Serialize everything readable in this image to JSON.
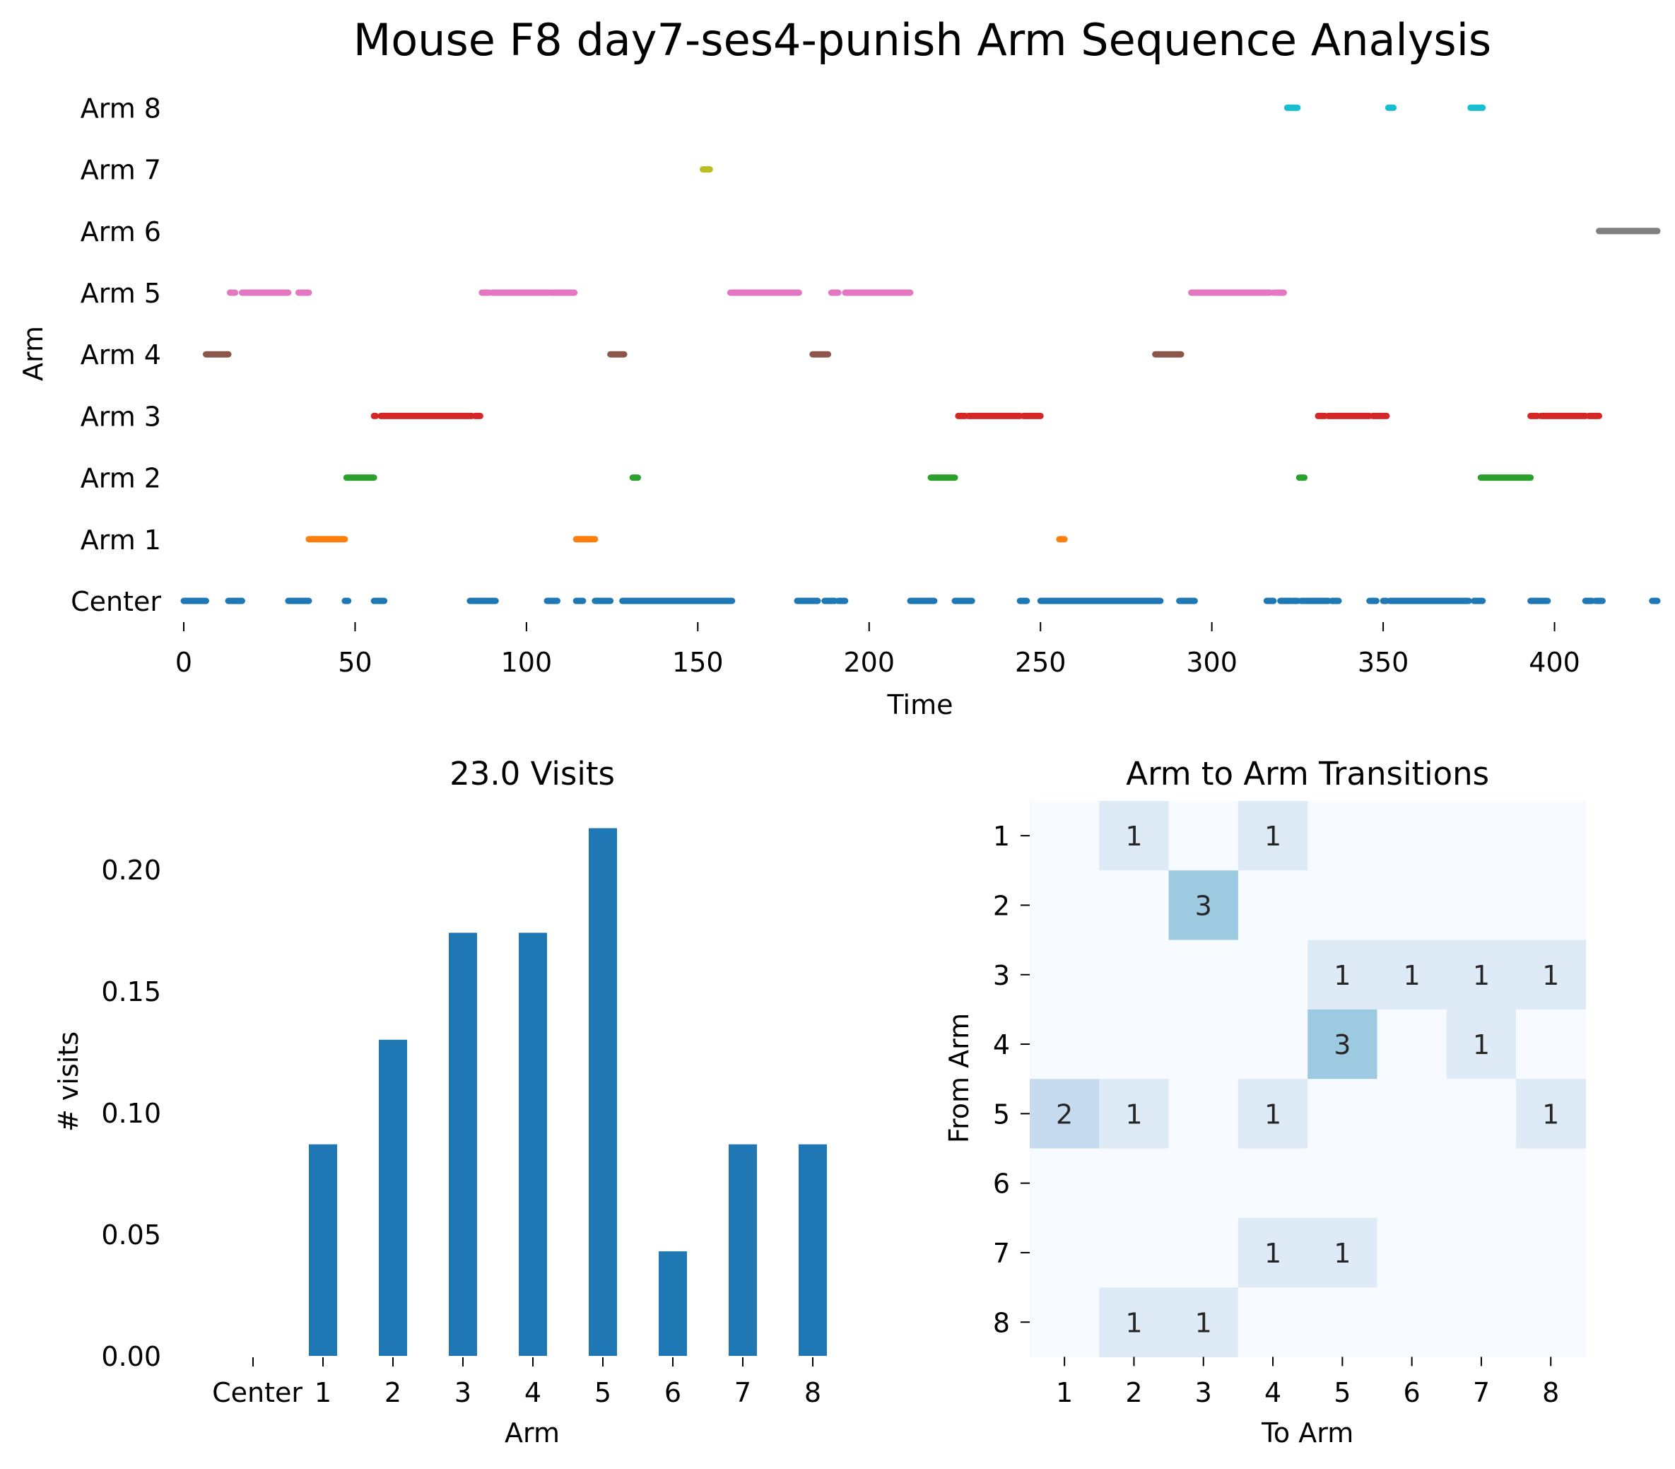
{
  "figure": {
    "suptitle": "Mouse F8 day7-ses4-punish Arm Sequence Analysis"
  },
  "chart_data": [
    {
      "type": "scatter",
      "title": "",
      "xlabel": "Time",
      "ylabel": "Arm",
      "xlim": [
        0,
        430
      ],
      "xticks": [
        0,
        50,
        100,
        150,
        200,
        250,
        300,
        350,
        400
      ],
      "categories": [
        "Center",
        "Arm 1",
        "Arm 2",
        "Arm 3",
        "Arm 4",
        "Arm 5",
        "Arm 6",
        "Arm 7",
        "Arm 8"
      ],
      "grid": false,
      "colors": {
        "Center": "#1f77b4",
        "Arm 1": "#ff7f0e",
        "Arm 2": "#2ca02c",
        "Arm 3": "#d62728",
        "Arm 4": "#8c564b",
        "Arm 5": "#e377c2",
        "Arm 6": "#7f7f7f",
        "Arm 7": "#bcbd22",
        "Arm 8": "#17becf"
      },
      "series": [
        {
          "name": "Center",
          "segments": [
            [
              0,
              6.5
            ],
            [
              13,
              17
            ],
            [
              30.5,
              36.5
            ],
            [
              47,
              48
            ],
            [
              55.5,
              58.5
            ],
            [
              83.5,
              91
            ],
            [
              106,
              109
            ],
            [
              114.5,
              116.5
            ],
            [
              120,
              124.5
            ],
            [
              128,
              160
            ],
            [
              179,
              185
            ],
            [
              187,
              190
            ],
            [
              191,
              193
            ],
            [
              212,
              219
            ],
            [
              225,
              230
            ],
            [
              244,
              246
            ],
            [
              250,
              285
            ],
            [
              290.5,
              295
            ],
            [
              316,
              318
            ],
            [
              320,
              323
            ],
            [
              323.5,
              325
            ],
            [
              326,
              327
            ],
            [
              327.5,
              334
            ],
            [
              335,
              337
            ],
            [
              346,
              348
            ],
            [
              350,
              351
            ],
            [
              352,
              375
            ],
            [
              376.5,
              379
            ],
            [
              393,
              398
            ],
            [
              409,
              411
            ],
            [
              412,
              414
            ],
            [
              428.5,
              430
            ]
          ]
        },
        {
          "name": "Arm 1",
          "segments": [
            [
              36.5,
              47
            ],
            [
              114.5,
              120
            ],
            [
              255.5,
              257
            ]
          ]
        },
        {
          "name": "Arm 2",
          "segments": [
            [
              47.5,
              55.5
            ],
            [
              131,
              132.5
            ],
            [
              218,
              225
            ],
            [
              325.5,
              327
            ],
            [
              378.5,
              393
            ]
          ]
        },
        {
          "name": "Arm 3",
          "segments": [
            [
              55.5,
              56
            ],
            [
              57.5,
              84
            ],
            [
              85,
              86.5
            ],
            [
              226,
              228
            ],
            [
              229,
              244
            ],
            [
              245,
              250
            ],
            [
              331,
              333
            ],
            [
              334,
              346
            ],
            [
              347,
              351
            ],
            [
              393,
              395
            ],
            [
              396,
              409
            ],
            [
              410,
              413
            ]
          ]
        },
        {
          "name": "Arm 4",
          "segments": [
            [
              6.5,
              13
            ],
            [
              124.5,
              128.5
            ],
            [
              183.5,
              188
            ],
            [
              283.5,
              291
            ]
          ]
        },
        {
          "name": "Arm 5",
          "segments": [
            [
              13.5,
              15
            ],
            [
              17,
              30.5
            ],
            [
              33.5,
              36.5
            ],
            [
              87,
              89
            ],
            [
              90,
              106.5
            ],
            [
              107,
              114
            ],
            [
              159.5,
              179.5
            ],
            [
              189,
              191
            ],
            [
              193,
              212
            ],
            [
              294,
              317
            ],
            [
              318,
              321
            ]
          ]
        },
        {
          "name": "Arm 6",
          "segments": [
            [
              413,
              430
            ]
          ]
        },
        {
          "name": "Arm 7",
          "segments": [
            [
              151.5,
              153.5
            ]
          ]
        },
        {
          "name": "Arm 8",
          "segments": [
            [
              322,
              325
            ],
            [
              351.5,
              353
            ],
            [
              375.5,
              379
            ]
          ]
        }
      ]
    },
    {
      "type": "bar",
      "title": "23.0 Visits",
      "xlabel": "Arm",
      "ylabel": "# visits",
      "categories": [
        "Center",
        "1",
        "2",
        "3",
        "4",
        "5",
        "6",
        "7",
        "8"
      ],
      "values": [
        0.0,
        0.087,
        0.13,
        0.174,
        0.174,
        0.217,
        0.043,
        0.087,
        0.087
      ],
      "ylim": [
        0,
        0.23
      ],
      "yticks": [
        "0.00",
        "0.05",
        "0.10",
        "0.15",
        "0.20"
      ],
      "color": "#1f77b4",
      "grid": false
    },
    {
      "type": "heatmap",
      "title": "Arm to Arm Transitions",
      "xlabel": "To Arm",
      "ylabel": "From Arm",
      "x_categories": [
        "1",
        "2",
        "3",
        "4",
        "5",
        "6",
        "7",
        "8"
      ],
      "y_categories": [
        "1",
        "2",
        "3",
        "4",
        "5",
        "6",
        "7",
        "8"
      ],
      "matrix": [
        [
          0,
          1,
          0,
          1,
          0,
          0,
          0,
          0
        ],
        [
          0,
          0,
          3,
          0,
          0,
          0,
          0,
          0
        ],
        [
          0,
          0,
          0,
          0,
          1,
          1,
          1,
          1
        ],
        [
          0,
          0,
          0,
          0,
          3,
          0,
          1,
          0
        ],
        [
          2,
          1,
          0,
          1,
          0,
          0,
          0,
          1
        ],
        [
          0,
          0,
          0,
          0,
          0,
          0,
          0,
          0
        ],
        [
          0,
          0,
          0,
          1,
          1,
          0,
          0,
          0
        ],
        [
          0,
          1,
          1,
          0,
          0,
          0,
          0,
          0
        ]
      ],
      "colormap": "Blues",
      "cell_colors": {
        "0": "#f7fbff",
        "1": "#deebf7",
        "2": "#c6dbef",
        "3": "#9ecae1"
      },
      "show_zero_labels": false
    }
  ]
}
